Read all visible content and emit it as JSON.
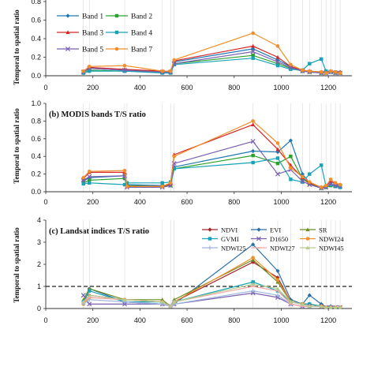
{
  "chart_data": [
    {
      "type": "line",
      "title": "",
      "ylabel": "Temporal to spatial ratio",
      "xlim": [
        0,
        1300
      ],
      "ylim": [
        0,
        0.8
      ],
      "yticks": [
        0,
        0.2,
        0.4,
        0.6,
        0.8
      ],
      "xticks": [
        0,
        200,
        400,
        600,
        800,
        1000,
        1200
      ],
      "legend": "top-left, 2 columns",
      "x": [
        160,
        185,
        335,
        495,
        530,
        545,
        880,
        985,
        1040,
        1090,
        1120,
        1170,
        1190,
        1210,
        1230,
        1250
      ],
      "series": [
        {
          "name": "Band 1",
          "color": "#1f77b4",
          "marker": "diamond",
          "values": [
            0.04,
            0.08,
            0.06,
            0.05,
            0.05,
            0.15,
            0.29,
            0.17,
            0.1,
            0.06,
            0.05,
            0.04,
            0.04,
            0.05,
            0.04,
            0.04
          ]
        },
        {
          "name": "Band 2",
          "color": "#2ca02c",
          "marker": "square",
          "values": [
            0.03,
            0.06,
            0.05,
            0.04,
            0.04,
            0.13,
            0.22,
            0.13,
            0.08,
            0.05,
            0.04,
            0.03,
            0.03,
            0.04,
            0.03,
            0.03
          ]
        },
        {
          "name": "Band 3",
          "color": "#d62728",
          "marker": "triangle",
          "values": [
            0.04,
            0.09,
            0.07,
            0.05,
            0.05,
            0.16,
            0.32,
            0.2,
            0.1,
            0.06,
            0.05,
            0.04,
            0.03,
            0.04,
            0.04,
            0.04
          ]
        },
        {
          "name": "Band 4",
          "color": "#17a2b8",
          "marker": "square",
          "values": [
            0.03,
            0.05,
            0.05,
            0.03,
            0.03,
            0.12,
            0.19,
            0.11,
            0.07,
            0.06,
            0.13,
            0.18,
            0.05,
            0.04,
            0.04,
            0.03
          ]
        },
        {
          "name": "Band 5",
          "color": "#7b61b0",
          "marker": "x",
          "values": [
            0.04,
            0.08,
            0.06,
            0.04,
            0.04,
            0.13,
            0.26,
            0.15,
            0.09,
            0.05,
            0.04,
            0.03,
            0.03,
            0.04,
            0.03,
            0.03
          ]
        },
        {
          "name": "Band 7",
          "color": "#f28e2b",
          "marker": "circle",
          "values": [
            0.05,
            0.1,
            0.11,
            0.05,
            0.05,
            0.17,
            0.46,
            0.32,
            0.12,
            0.06,
            0.05,
            0.04,
            0.03,
            0.05,
            0.04,
            0.03
          ]
        }
      ]
    },
    {
      "type": "line",
      "title": "(b) MODIS bands T/S ratio",
      "ylabel": "Temporal to spatial ratio",
      "xlim": [
        0,
        1300
      ],
      "ylim": [
        0,
        1.0
      ],
      "yticks": [
        0,
        0.2,
        0.4,
        0.6,
        0.8,
        1.0
      ],
      "xticks": [
        0,
        200,
        400,
        600,
        800,
        1000,
        1200
      ],
      "x": [
        160,
        185,
        335,
        345,
        495,
        530,
        545,
        880,
        985,
        1040,
        1090,
        1120,
        1170,
        1190,
        1210,
        1230,
        1250
      ],
      "series": [
        {
          "name": "Band 1",
          "color": "#1f77b4",
          "marker": "diamond",
          "values": [
            0.12,
            0.16,
            0.18,
            0.08,
            0.07,
            0.08,
            0.28,
            0.46,
            0.45,
            0.58,
            0.2,
            0.1,
            0.05,
            0.06,
            0.08,
            0.07,
            0.06
          ]
        },
        {
          "name": "Band 2",
          "color": "#2ca02c",
          "marker": "square",
          "values": [
            0.1,
            0.13,
            0.15,
            0.07,
            0.06,
            0.07,
            0.26,
            0.41,
            0.32,
            0.4,
            0.15,
            0.09,
            0.04,
            0.05,
            0.07,
            0.06,
            0.05
          ]
        },
        {
          "name": "Band 3",
          "color": "#d62728",
          "marker": "triangle",
          "values": [
            0.15,
            0.22,
            0.22,
            0.06,
            0.06,
            0.09,
            0.42,
            0.76,
            0.48,
            0.3,
            0.16,
            0.1,
            0.05,
            0.06,
            0.12,
            0.09,
            0.07
          ]
        },
        {
          "name": "Band 4",
          "color": "#17a2b8",
          "marker": "square",
          "values": [
            0.09,
            0.1,
            0.08,
            0.1,
            0.1,
            0.11,
            0.26,
            0.33,
            0.38,
            0.14,
            0.11,
            0.2,
            0.3,
            0.06,
            0.08,
            0.06,
            0.05
          ]
        },
        {
          "name": "Band 5",
          "color": "#7b61b0",
          "marker": "x",
          "values": [
            0.13,
            0.17,
            0.18,
            0.05,
            0.05,
            0.07,
            0.32,
            0.57,
            0.2,
            0.25,
            0.12,
            0.08,
            0.04,
            0.05,
            0.09,
            0.07,
            0.06
          ]
        },
        {
          "name": "Band 7",
          "color": "#f28e2b",
          "marker": "circle",
          "values": [
            0.16,
            0.23,
            0.24,
            0.06,
            0.06,
            0.1,
            0.4,
            0.8,
            0.55,
            0.27,
            0.17,
            0.11,
            0.05,
            0.07,
            0.14,
            0.1,
            0.08
          ]
        }
      ]
    },
    {
      "type": "line",
      "title": "(c) Landsat indices T/S ratio",
      "ylabel": "Temporal to spatial ratio",
      "xlim": [
        0,
        1300
      ],
      "ylim": [
        0,
        4
      ],
      "yticks": [
        0,
        1,
        2,
        3,
        4
      ],
      "xticks": [
        0,
        200,
        400,
        600,
        800,
        1000,
        1200
      ],
      "reference_line": 1,
      "legend": "top-right, 3 columns",
      "x": [
        160,
        185,
        335,
        495,
        530,
        545,
        880,
        985,
        1040,
        1090,
        1120,
        1170,
        1190,
        1210,
        1230,
        1250
      ],
      "series": [
        {
          "name": "NDVI",
          "color": "#a4262c",
          "marker": "diamond",
          "values": [
            0.3,
            0.6,
            0.4,
            0.3,
            0.1,
            0.3,
            2.1,
            1.4,
            0.3,
            0.2,
            0.2,
            0.1,
            0.05,
            0.05,
            0.05,
            0.05
          ]
        },
        {
          "name": "EVI",
          "color": "#2b6ea6",
          "marker": "diamond",
          "values": [
            0.2,
            0.9,
            0.3,
            0.2,
            0.1,
            0.2,
            2.9,
            1.7,
            0.4,
            0.2,
            0.6,
            0.2,
            0.05,
            0.1,
            0.05,
            0.05
          ]
        },
        {
          "name": "SR",
          "color": "#6b8e23",
          "marker": "triangle",
          "values": [
            0.4,
            0.9,
            0.4,
            0.4,
            0.1,
            0.4,
            2.2,
            1.2,
            0.3,
            0.2,
            0.2,
            0.1,
            0.05,
            0.05,
            0.05,
            0.05
          ]
        },
        {
          "name": "GVMI",
          "color": "#17a2b8",
          "marker": "square",
          "values": [
            0.3,
            0.8,
            0.3,
            0.3,
            0.1,
            0.3,
            1.2,
            0.8,
            0.3,
            0.2,
            0.2,
            0.1,
            0.05,
            0.05,
            0.05,
            0.05
          ]
        },
        {
          "name": "D1650",
          "color": "#7b61b0",
          "marker": "x",
          "values": [
            0.6,
            0.2,
            0.2,
            0.2,
            0.1,
            0.2,
            0.7,
            0.5,
            0.2,
            0.1,
            0.1,
            0.1,
            0.05,
            0.05,
            0.05,
            0.05
          ]
        },
        {
          "name": "NDWI24",
          "color": "#f28e2b",
          "marker": "circle",
          "values": [
            0.2,
            0.5,
            0.4,
            0.3,
            0.1,
            0.3,
            2.3,
            1.3,
            0.3,
            0.2,
            0.1,
            0.1,
            0.05,
            0.05,
            0.05,
            0.05
          ]
        },
        {
          "name": "NDWI25",
          "color": "#9fb7e0",
          "marker": "plus",
          "values": [
            0.2,
            0.4,
            0.3,
            0.2,
            0.1,
            0.2,
            0.8,
            0.6,
            0.2,
            0.1,
            0.1,
            0.1,
            0.05,
            0.05,
            0.05,
            0.05
          ]
        },
        {
          "name": "NDWI27",
          "color": "#f4a6a6",
          "marker": "dash",
          "values": [
            0.3,
            0.5,
            0.4,
            0.3,
            0.1,
            0.3,
            1.0,
            0.8,
            0.2,
            0.1,
            0.1,
            0.1,
            0.05,
            0.05,
            0.05,
            0.05
          ]
        },
        {
          "name": "NDWI45",
          "color": "#b5cc8e",
          "marker": "triangle",
          "values": [
            0.3,
            0.6,
            0.4,
            0.3,
            0.1,
            0.3,
            1.1,
            0.9,
            0.3,
            0.2,
            0.1,
            0.1,
            0.05,
            0.05,
            0.05,
            0.05
          ]
        }
      ]
    }
  ]
}
